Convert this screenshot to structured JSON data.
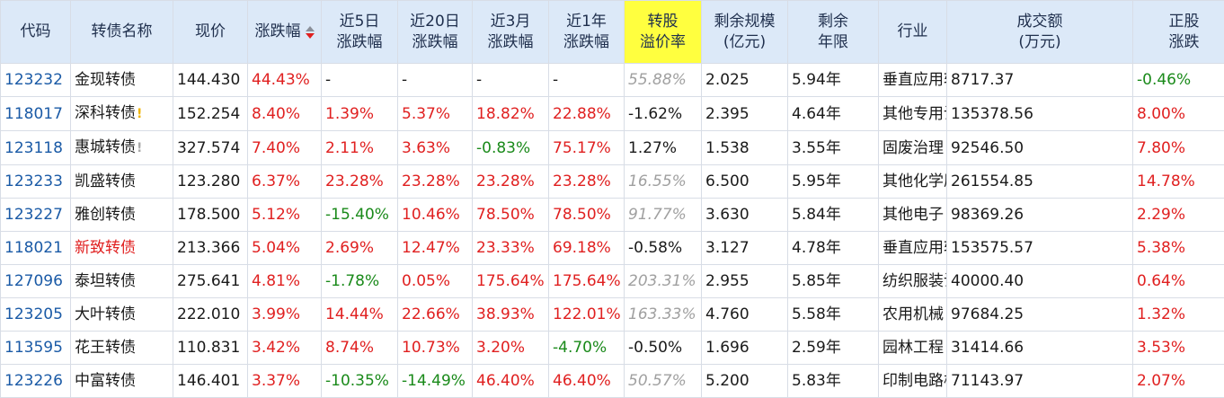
{
  "headers": {
    "code": "代码",
    "name": "转债名称",
    "price": "现价",
    "change": "涨跌幅",
    "d5_1": "近5日",
    "d5_2": "涨跌幅",
    "d20_1": "近20日",
    "d20_2": "涨跌幅",
    "m3_1": "近3月",
    "m3_2": "涨跌幅",
    "y1_1": "近1年",
    "y1_2": "涨跌幅",
    "prem_1": "转股",
    "prem_2": "溢价率",
    "scale_1": "剩余规模",
    "scale_2": "(亿元)",
    "term_1": "剩余",
    "term_2": "年限",
    "industry": "行业",
    "vol_1": "成交额",
    "vol_2": "(万元)",
    "stock_1": "正股",
    "stock_2": "涨跌"
  },
  "colors": {
    "up": "#e02020",
    "down": "#1a8a1a",
    "code": "#1a5aa6",
    "header_bg": "#dce9f8",
    "highlight": "#ffff3f"
  },
  "rows": [
    {
      "code": "123232",
      "name": "金现转债",
      "price": "144.430",
      "change": "44.43%",
      "d5": "-",
      "d20": "-",
      "m3": "-",
      "y1": "-",
      "premium": "55.88%",
      "scale": "2.025",
      "term": "5.94年",
      "industry": "垂直应用软件",
      "volume": "8717.37",
      "stock": "-0.46%"
    },
    {
      "code": "118017",
      "name": "深科转债",
      "warn": "!",
      "price": "152.254",
      "change": "8.40%",
      "d5": "1.39%",
      "d20": "5.37%",
      "m3": "18.82%",
      "y1": "22.88%",
      "premium": "-1.62%",
      "scale": "2.395",
      "term": "4.64年",
      "industry": "其他专用设备",
      "volume": "135378.56",
      "stock": "8.00%"
    },
    {
      "code": "123118",
      "name": "惠城转债",
      "warn": "!",
      "price": "327.574",
      "change": "7.40%",
      "d5": "2.11%",
      "d20": "3.63%",
      "m3": "-0.83%",
      "y1": "75.17%",
      "premium": "1.27%",
      "scale": "1.538",
      "term": "3.55年",
      "industry": "固废治理",
      "volume": "92546.50",
      "stock": "7.80%"
    },
    {
      "code": "123233",
      "name": "凯盛转债",
      "price": "123.280",
      "change": "6.37%",
      "d5": "23.28%",
      "d20": "23.28%",
      "m3": "23.28%",
      "y1": "23.28%",
      "premium": "16.55%",
      "scale": "6.500",
      "term": "5.95年",
      "industry": "其他化学原料",
      "volume": "261554.85",
      "stock": "14.78%"
    },
    {
      "code": "123227",
      "name": "雅创转债",
      "price": "178.500",
      "change": "5.12%",
      "d5": "-15.40%",
      "d20": "10.46%",
      "m3": "78.50%",
      "y1": "78.50%",
      "premium": "91.77%",
      "scale": "3.630",
      "term": "5.84年",
      "industry": "其他电子",
      "volume": "98369.26",
      "stock": "2.29%"
    },
    {
      "code": "118021",
      "name": "新致转债",
      "price": "213.366",
      "change": "5.04%",
      "d5": "2.69%",
      "d20": "12.47%",
      "m3": "23.33%",
      "y1": "69.18%",
      "premium": "-0.58%",
      "scale": "3.127",
      "term": "4.78年",
      "industry": "垂直应用软件",
      "volume": "153575.57",
      "stock": "5.38%"
    },
    {
      "code": "127096",
      "name": "泰坦转债",
      "price": "275.641",
      "change": "4.81%",
      "d5": "-1.78%",
      "d20": "0.05%",
      "m3": "175.64%",
      "y1": "175.64%",
      "premium": "203.31%",
      "scale": "2.955",
      "term": "5.85年",
      "industry": "纺织服装设备",
      "volume": "40000.40",
      "stock": "0.64%"
    },
    {
      "code": "123205",
      "name": "大叶转债",
      "price": "222.010",
      "change": "3.99%",
      "d5": "14.44%",
      "d20": "22.66%",
      "m3": "38.93%",
      "y1": "122.01%",
      "premium": "163.33%",
      "scale": "4.760",
      "term": "5.58年",
      "industry": "农用机械",
      "volume": "97684.25",
      "stock": "1.32%"
    },
    {
      "code": "113595",
      "name": "花王转债",
      "price": "110.831",
      "change": "3.42%",
      "d5": "8.74%",
      "d20": "10.73%",
      "m3": "3.20%",
      "y1": "-4.70%",
      "premium": "-0.50%",
      "scale": "1.696",
      "term": "2.59年",
      "industry": "园林工程",
      "volume": "31414.66",
      "stock": "3.53%"
    },
    {
      "code": "123226",
      "name": "中富转债",
      "price": "146.401",
      "change": "3.37%",
      "d5": "-10.35%",
      "d20": "-14.49%",
      "m3": "46.40%",
      "y1": "46.40%",
      "premium": "50.57%",
      "scale": "5.200",
      "term": "5.83年",
      "industry": "印制电路板",
      "volume": "71143.97",
      "stock": "2.07%"
    }
  ]
}
